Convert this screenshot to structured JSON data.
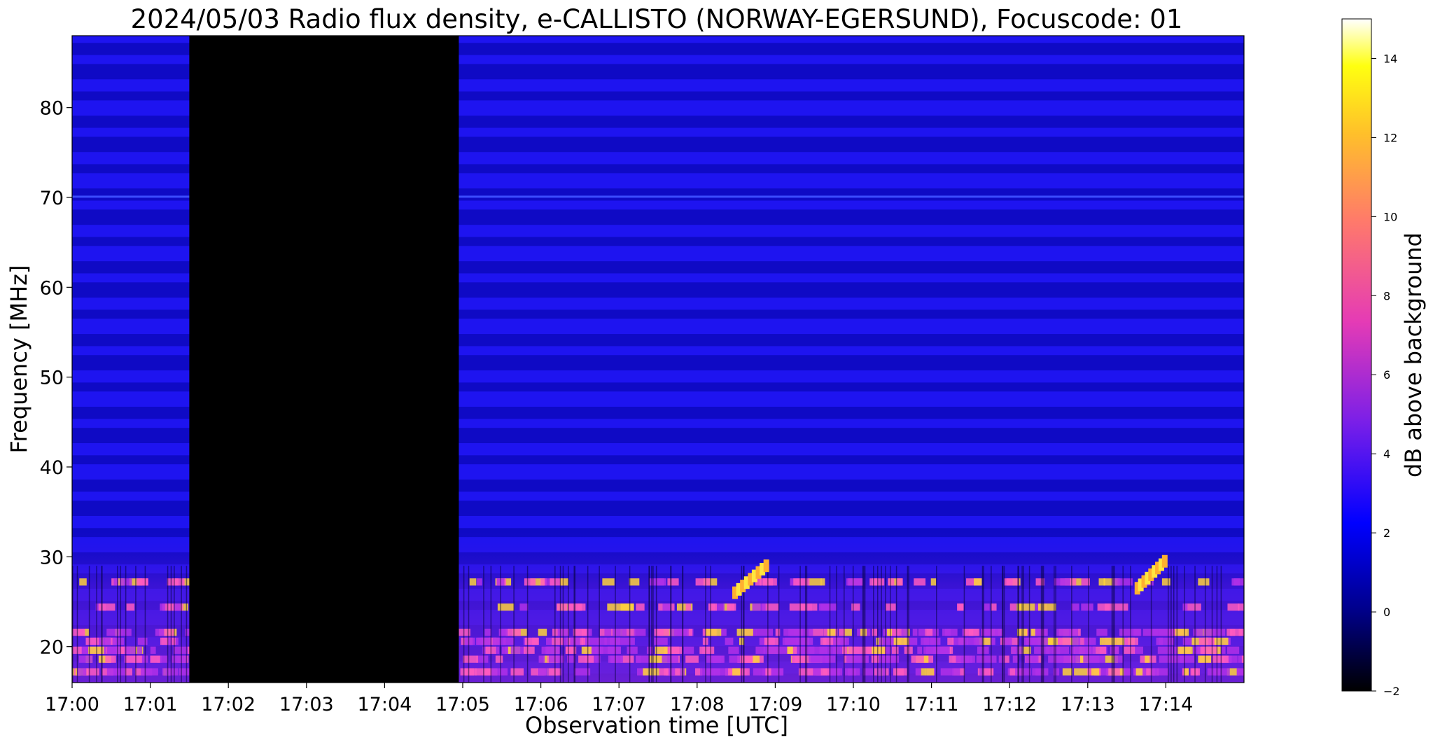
{
  "chart_data": {
    "type": "heatmap",
    "title": "2024/05/03  Radio flux density, e-CALLISTO (NORWAY-EGERSUND), Focuscode: 01",
    "xlabel": "Observation time [UTC]",
    "ylabel": "Frequency [MHz]",
    "x_ticks": [
      "17:00",
      "17:01",
      "17:02",
      "17:03",
      "17:04",
      "17:05",
      "17:06",
      "17:07",
      "17:08",
      "17:09",
      "17:10",
      "17:11",
      "17:12",
      "17:13",
      "17:14"
    ],
    "x_range_minutes": [
      0,
      15
    ],
    "y_ticks": [
      20,
      30,
      40,
      50,
      60,
      70,
      80
    ],
    "y_range_mhz": [
      16,
      88
    ],
    "colorbar": {
      "label": "dB above background",
      "ticks": [
        -2,
        0,
        2,
        4,
        6,
        8,
        10,
        12,
        14
      ],
      "range": [
        -2,
        15
      ],
      "colormap": "gnuplot2",
      "colors": [
        "#000000",
        "#0000ff",
        "#8a2be2",
        "#ff4d9d",
        "#ffb24a",
        "#ffff00",
        "#ffffff"
      ]
    },
    "gap": {
      "start_min": 1.5,
      "end_min": 4.95,
      "value_db": -2
    },
    "bursts": [
      {
        "t0_min": 8.45,
        "t1_min": 8.85,
        "f0_mhz": 26,
        "f1_mhz": 29
      },
      {
        "t0_min": 13.6,
        "t1_min": 13.95,
        "f0_mhz": 26.5,
        "f1_mhz": 29.5
      }
    ]
  }
}
